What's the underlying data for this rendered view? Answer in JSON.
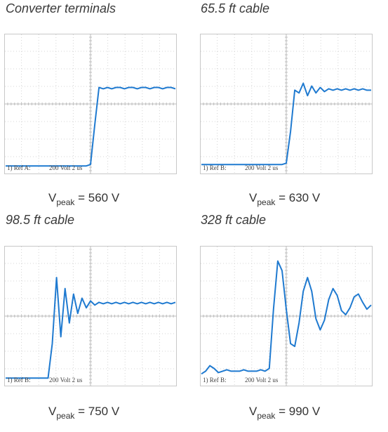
{
  "chart_data": [
    {
      "type": "line",
      "title": "Converter terminals",
      "reference_label": "1) Ref A:",
      "scale_label": "200 Volt  2 us",
      "peak": {
        "symbol": "V",
        "subscript": "peak",
        "text": " = 560 V"
      },
      "series": [
        {
          "values": [
            0.05,
            0.05,
            0.05,
            0.05,
            0.05,
            0.05,
            0.05,
            0.05,
            0.05,
            0.05,
            0.05,
            0.05,
            0.05,
            0.05,
            0.05,
            0.05,
            0.05,
            0.05,
            0.05,
            0.05,
            0.06,
            0.35,
            0.62,
            0.61,
            0.62,
            0.61,
            0.62,
            0.62,
            0.61,
            0.62,
            0.62,
            0.61,
            0.62,
            0.62,
            0.61,
            0.62,
            0.62,
            0.61,
            0.62,
            0.62,
            0.61
          ]
        }
      ],
      "trace_color": "#1f7ad0"
    },
    {
      "type": "line",
      "title": "65.5 ft cable",
      "reference_label": "1) Ref B:",
      "scale_label": "200 Volt  2 us",
      "peak": {
        "symbol": "V",
        "subscript": "peak",
        "text": " = 630 V"
      },
      "series": [
        {
          "values": [
            0.06,
            0.06,
            0.06,
            0.06,
            0.06,
            0.06,
            0.06,
            0.06,
            0.06,
            0.06,
            0.06,
            0.06,
            0.06,
            0.06,
            0.06,
            0.06,
            0.06,
            0.06,
            0.06,
            0.06,
            0.07,
            0.3,
            0.6,
            0.58,
            0.65,
            0.56,
            0.63,
            0.58,
            0.62,
            0.59,
            0.61,
            0.6,
            0.61,
            0.6,
            0.61,
            0.6,
            0.61,
            0.6,
            0.61,
            0.6,
            0.6
          ]
        }
      ],
      "trace_color": "#1f7ad0"
    },
    {
      "type": "line",
      "title": "98.5 ft cable",
      "reference_label": "1) Ref B:",
      "scale_label": "200 Volt  2 us",
      "peak": {
        "symbol": "V",
        "subscript": "peak",
        "text": " = 750 V"
      },
      "series": [
        {
          "values": [
            0.05,
            0.05,
            0.05,
            0.05,
            0.05,
            0.05,
            0.05,
            0.05,
            0.05,
            0.05,
            0.05,
            0.3,
            0.78,
            0.35,
            0.7,
            0.45,
            0.66,
            0.52,
            0.63,
            0.56,
            0.61,
            0.58,
            0.6,
            0.59,
            0.6,
            0.59,
            0.6,
            0.59,
            0.6,
            0.59,
            0.6,
            0.59,
            0.6,
            0.59,
            0.6,
            0.59,
            0.6,
            0.59,
            0.6,
            0.59,
            0.6
          ]
        }
      ],
      "trace_color": "#1f7ad0"
    },
    {
      "type": "line",
      "title": "328 ft cable",
      "reference_label": "1) Ref B:",
      "scale_label": "200 Volt  2 us",
      "peak": {
        "symbol": "V",
        "subscript": "peak",
        "text": " = 990 V"
      },
      "series": [
        {
          "values": [
            0.08,
            0.1,
            0.14,
            0.12,
            0.09,
            0.1,
            0.11,
            0.1,
            0.1,
            0.1,
            0.11,
            0.1,
            0.1,
            0.1,
            0.11,
            0.1,
            0.12,
            0.55,
            0.9,
            0.83,
            0.55,
            0.3,
            0.28,
            0.45,
            0.68,
            0.78,
            0.68,
            0.48,
            0.4,
            0.47,
            0.62,
            0.7,
            0.65,
            0.54,
            0.51,
            0.56,
            0.64,
            0.66,
            0.6,
            0.55,
            0.58
          ]
        }
      ],
      "trace_color": "#1f7ad0"
    }
  ]
}
